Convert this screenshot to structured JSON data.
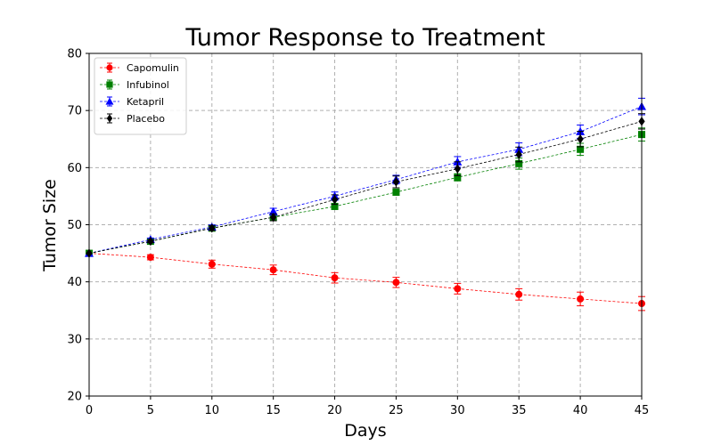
{
  "chart_data": {
    "type": "line",
    "title": "Tumor Response to Treatment",
    "xlabel": "Days",
    "ylabel": "Tumor Size",
    "xlim": [
      0,
      45
    ],
    "ylim": [
      20,
      80
    ],
    "x_ticks": [
      "0",
      "5",
      "10",
      "15",
      "20",
      "25",
      "30",
      "35",
      "40",
      "45"
    ],
    "y_ticks": [
      "20",
      "30",
      "40",
      "50",
      "60",
      "70",
      "80"
    ],
    "grid": true,
    "grid_style": "dashed",
    "legend_position": "top-left",
    "x": [
      0,
      5,
      10,
      15,
      20,
      25,
      30,
      35,
      40,
      45
    ],
    "series": [
      {
        "name": "Capomulin",
        "color": "#ff0000",
        "marker": "circle",
        "values": [
          45.0,
          44.3,
          43.1,
          42.1,
          40.7,
          39.9,
          38.8,
          37.8,
          37.0,
          36.2
        ],
        "errors": [
          0.0,
          0.45,
          0.7,
          0.84,
          0.91,
          0.89,
          0.93,
          1.0,
          1.2,
          1.22
        ]
      },
      {
        "name": "Infubinol",
        "color": "#008000",
        "marker": "square",
        "values": [
          45.0,
          47.1,
          49.4,
          51.3,
          53.2,
          55.7,
          58.3,
          60.7,
          63.2,
          65.8
        ],
        "errors": [
          0.0,
          0.24,
          0.28,
          0.36,
          0.48,
          0.55,
          0.63,
          0.98,
          1.06,
          1.14
        ]
      },
      {
        "name": "Ketapril",
        "color": "#0000ff",
        "marker": "triangle",
        "values": [
          45.0,
          47.4,
          49.6,
          52.3,
          55.0,
          57.9,
          61.0,
          63.2,
          66.3,
          70.7
        ],
        "errors": [
          0.0,
          0.26,
          0.36,
          0.58,
          0.73,
          0.76,
          0.93,
          1.13,
          1.16,
          1.45
        ]
      },
      {
        "name": "Placebo",
        "color": "#000000",
        "marker": "diamond",
        "values": [
          45.0,
          47.1,
          49.4,
          51.3,
          54.4,
          57.5,
          59.8,
          62.3,
          65.0,
          68.1
        ],
        "errors": [
          0.0,
          0.22,
          0.4,
          0.61,
          0.84,
          1.03,
          1.22,
          1.29,
          1.35,
          1.35
        ]
      }
    ]
  }
}
